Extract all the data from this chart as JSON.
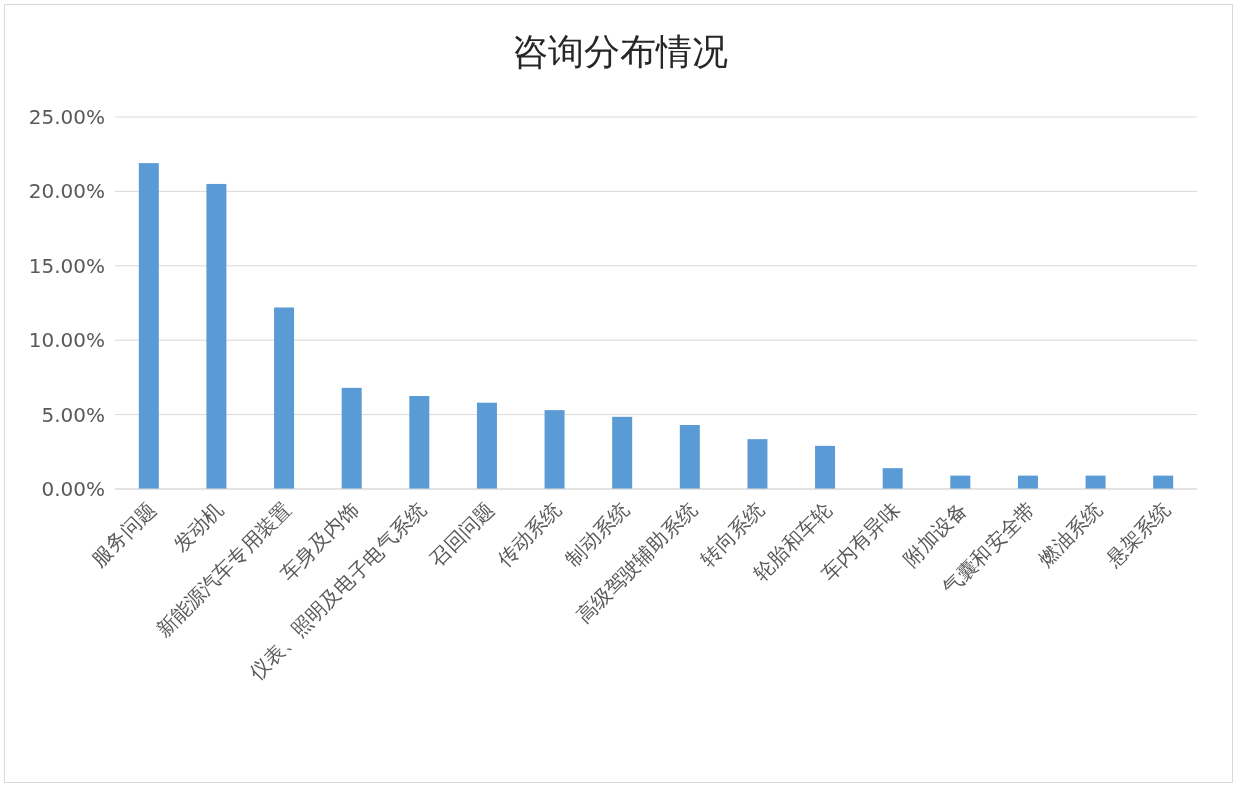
{
  "chart_data": {
    "type": "bar",
    "title": "咨询分布情况",
    "categories": [
      "服务问题",
      "发动机",
      "新能源汽车专用装置",
      "车身及内饰",
      "仪表、照明及电子电气系统",
      "召回问题",
      "传动系统",
      "制动系统",
      "高级驾驶辅助系统",
      "转向系统",
      "轮胎和车轮",
      "车内有异味",
      "附加设备",
      "气囊和安全带",
      "燃油系统",
      "悬架系统"
    ],
    "values": [
      21.9,
      20.5,
      12.2,
      6.8,
      6.25,
      5.8,
      5.3,
      4.85,
      4.3,
      3.35,
      2.9,
      1.4,
      0.9,
      0.9,
      0.9,
      0.9
    ],
    "color": "#5b9bd5",
    "ylim": [
      0,
      25
    ],
    "yticks": [
      {
        "value": 0,
        "label": "0.00%"
      },
      {
        "value": 5,
        "label": "5.00%"
      },
      {
        "value": 10,
        "label": "10.00%"
      },
      {
        "value": 15,
        "label": "15.00%"
      },
      {
        "value": 20,
        "label": "20.00%"
      },
      {
        "value": 25,
        "label": "25.00%"
      }
    ],
    "grid": "y"
  }
}
